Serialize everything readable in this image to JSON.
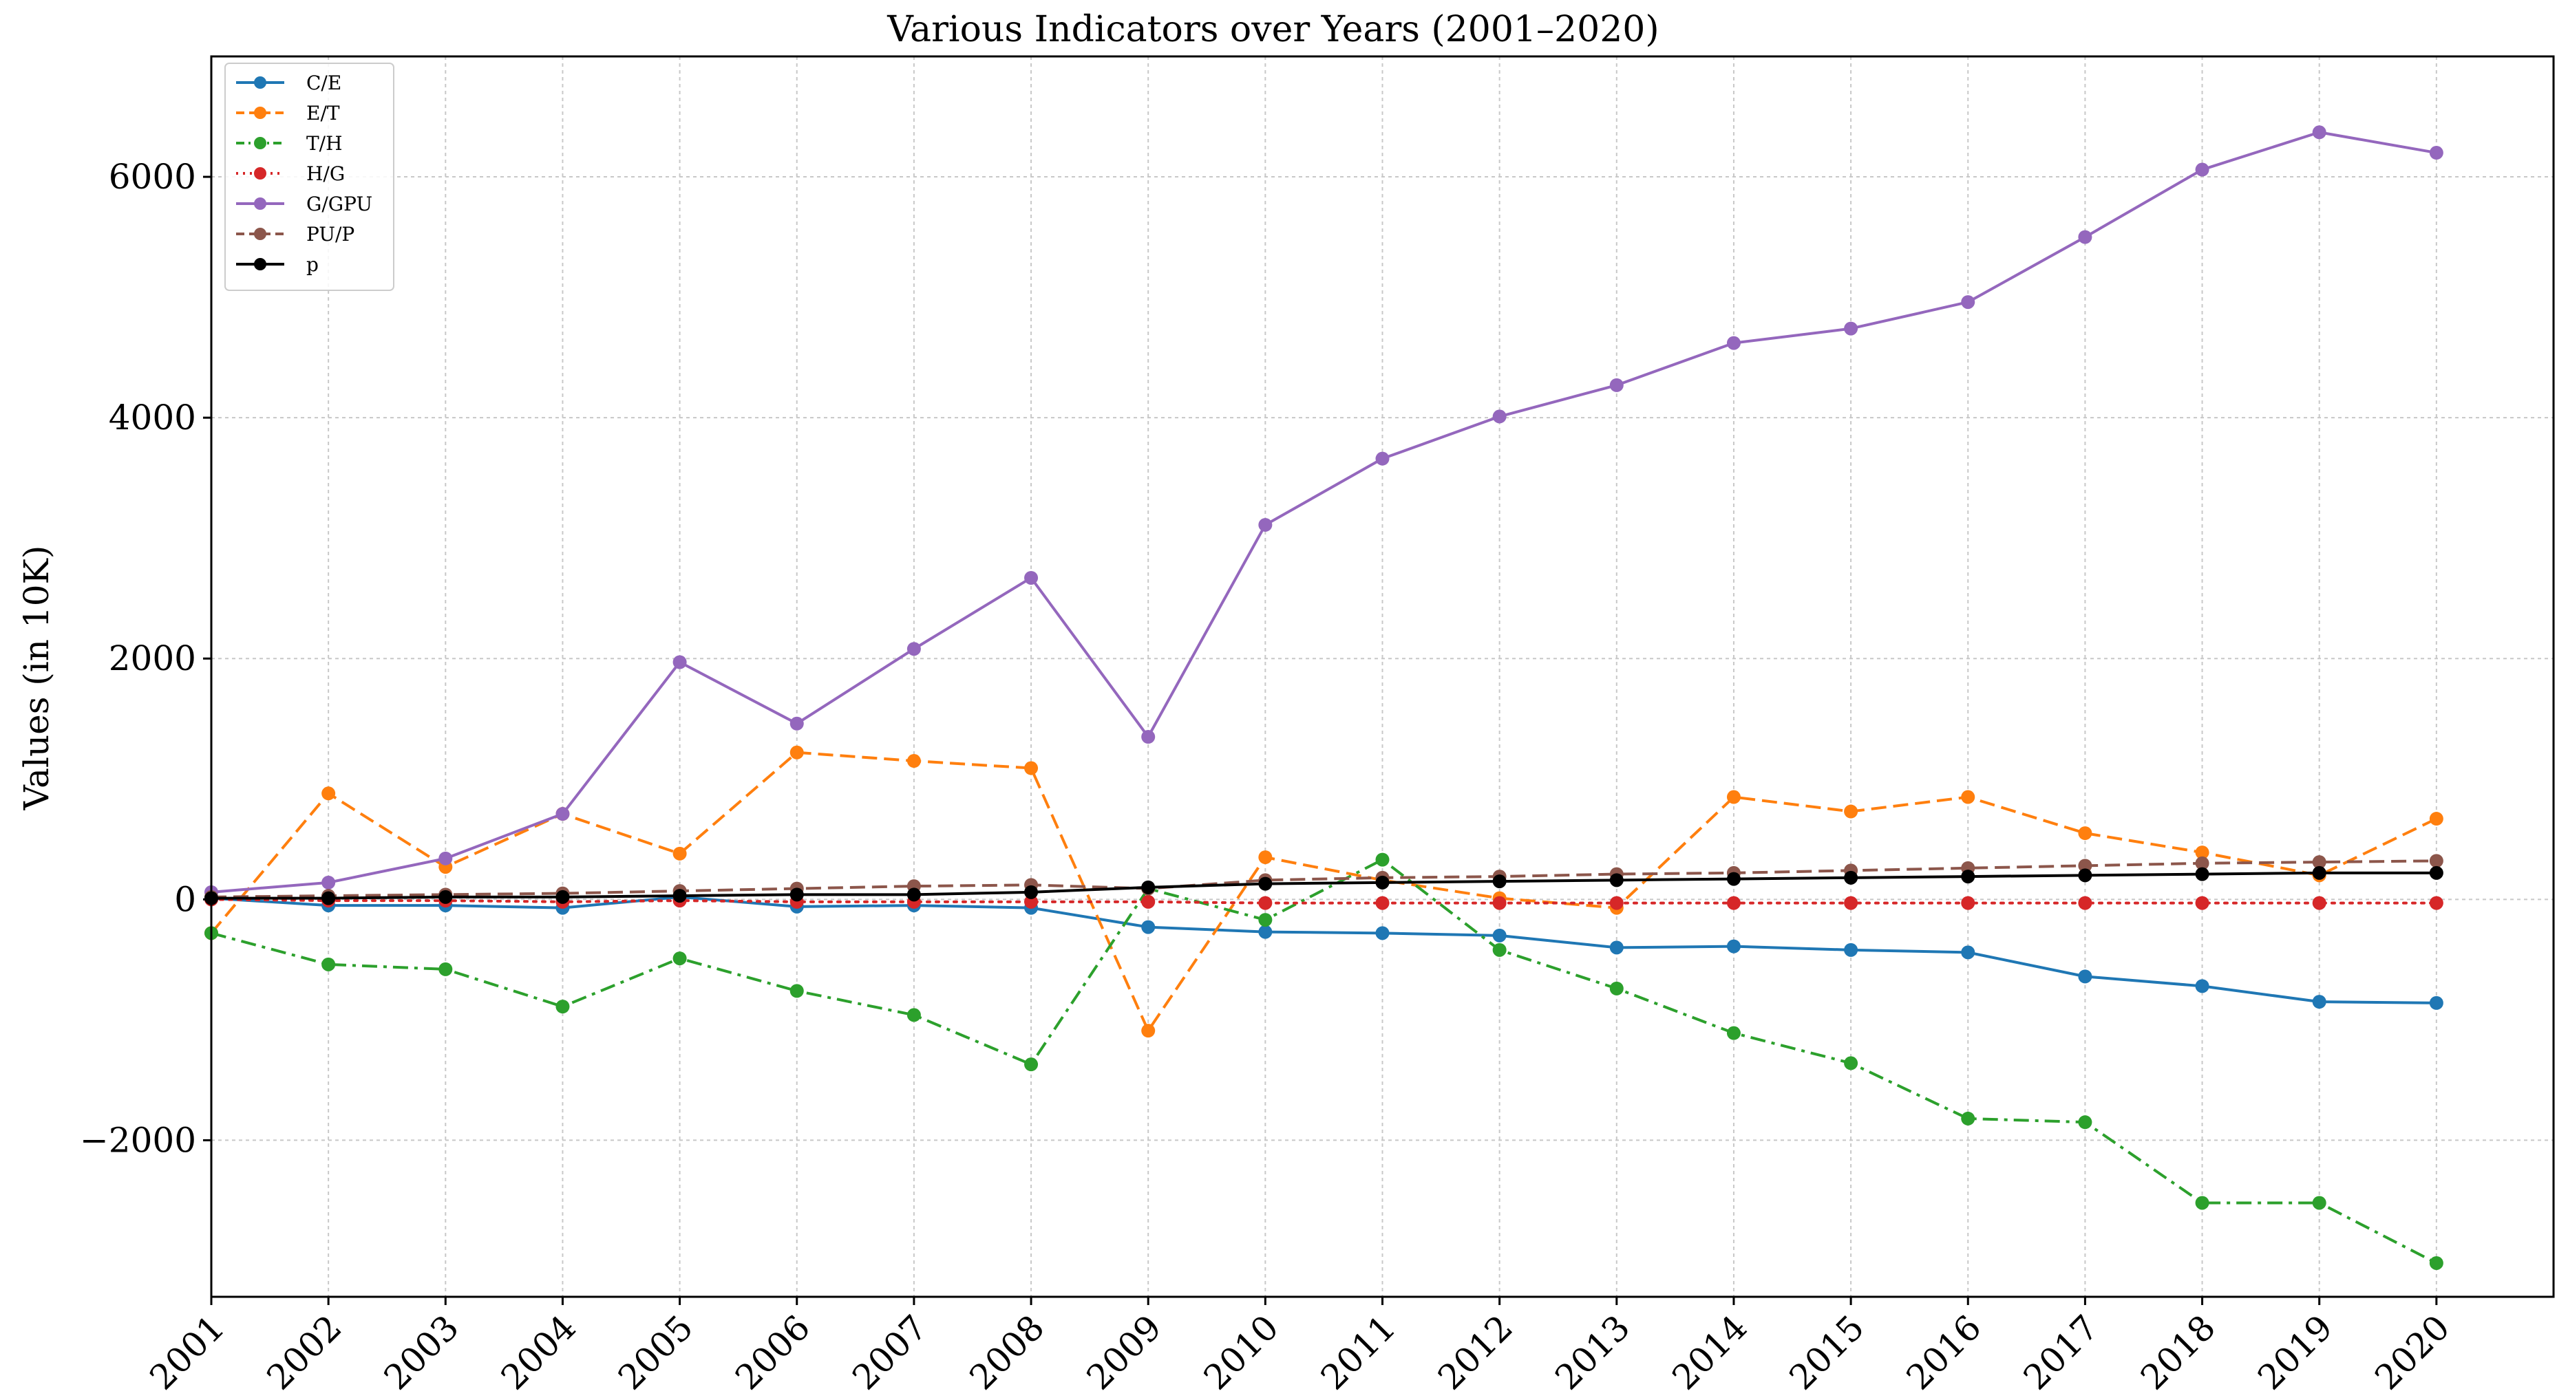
{
  "chart_data": {
    "type": "line",
    "title": "Various Indicators over Years (2001–2020)",
    "xlabel": "",
    "ylabel": "Values (in 10K)",
    "x": [
      2001,
      2002,
      2003,
      2004,
      2005,
      2006,
      2007,
      2008,
      2009,
      2010,
      2011,
      2012,
      2013,
      2014,
      2015,
      2016,
      2017,
      2018,
      2019,
      2020
    ],
    "xlim": [
      2001,
      2021
    ],
    "ylim": [
      -3300,
      7000
    ],
    "yticks": [
      -2000,
      0,
      2000,
      4000,
      6000
    ],
    "grid": true,
    "legend_position": "top-left",
    "series": [
      {
        "name": "C/E",
        "color": "#1f77b4",
        "dash": "solid",
        "values": [
          10,
          -50,
          -50,
          -70,
          20,
          -60,
          -50,
          -70,
          -230,
          -270,
          -280,
          -300,
          -400,
          -390,
          -420,
          -440,
          -640,
          -720,
          -850,
          -860
        ]
      },
      {
        "name": "E/T",
        "color": "#ff7f0e",
        "dash": "dashed",
        "values": [
          -280,
          880,
          270,
          710,
          380,
          1220,
          1150,
          1090,
          -1090,
          350,
          160,
          10,
          -70,
          850,
          730,
          850,
          550,
          390,
          200,
          670
        ]
      },
      {
        "name": "T/H",
        "color": "#2ca02c",
        "dash": "dashdot",
        "values": [
          -280,
          -540,
          -580,
          -890,
          -490,
          -760,
          -960,
          -1370,
          90,
          -170,
          330,
          -420,
          -740,
          -1110,
          -1360,
          -1820,
          -1850,
          -2520,
          -2520,
          -3020
        ]
      },
      {
        "name": "H/G",
        "color": "#d62728",
        "dash": "dotted",
        "values": [
          0,
          -10,
          -10,
          -20,
          -10,
          -20,
          -20,
          -20,
          -20,
          -30,
          -30,
          -30,
          -30,
          -30,
          -30,
          -30,
          -30,
          -30,
          -30,
          -30
        ]
      },
      {
        "name": "G/GPU",
        "color": "#9467bd",
        "dash": "solid",
        "values": [
          60,
          140,
          340,
          710,
          1970,
          1460,
          2080,
          2670,
          1350,
          3110,
          3660,
          4010,
          4270,
          4620,
          4740,
          4960,
          5500,
          6060,
          6370,
          6200
        ]
      },
      {
        "name": "PU/P",
        "color": "#8c564b",
        "dash": "dashed",
        "values": [
          20,
          30,
          40,
          50,
          70,
          90,
          110,
          120,
          90,
          160,
          180,
          190,
          210,
          220,
          240,
          260,
          280,
          300,
          310,
          320
        ]
      },
      {
        "name": "p",
        "color": "#000000",
        "dash": "solid",
        "values": [
          10,
          10,
          20,
          20,
          30,
          40,
          40,
          60,
          100,
          130,
          140,
          150,
          160,
          170,
          180,
          190,
          200,
          210,
          220,
          220
        ]
      }
    ]
  }
}
